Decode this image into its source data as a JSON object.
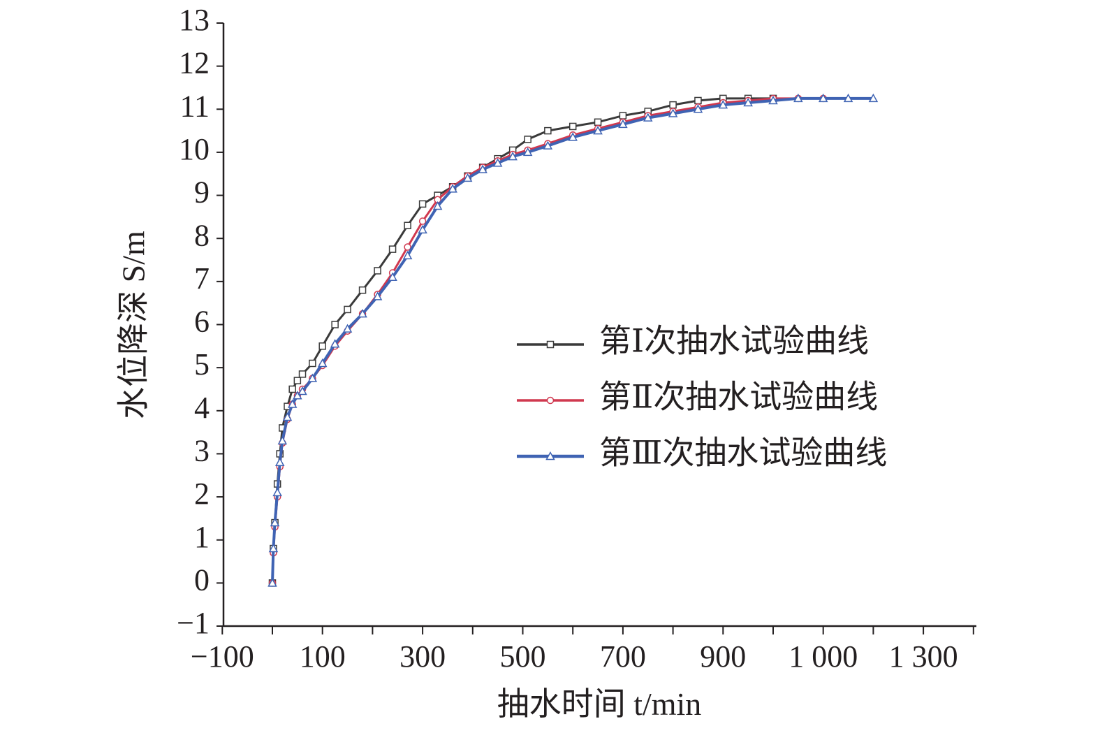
{
  "chart_data": {
    "type": "line",
    "xlabel": "抽水时间 t/min",
    "ylabel": "水位降深 S/m",
    "x_tick_labels": [
      "−100",
      "100",
      "300",
      "500",
      "700",
      "900",
      "1 000",
      "1 300"
    ],
    "y_ticks": [
      -1,
      0,
      1,
      2,
      3,
      4,
      5,
      6,
      7,
      8,
      9,
      10,
      11,
      12,
      13
    ],
    "y_tick_labels": [
      "−1",
      "0",
      "1",
      "2",
      "3",
      "4",
      "5",
      "6",
      "7",
      "8",
      "9",
      "10",
      "11",
      "12",
      "13"
    ],
    "ylim": [
      -1,
      13
    ],
    "grid": false,
    "legend_position": "center-right",
    "series": [
      {
        "name": "第Ⅰ次抽水试验曲线",
        "color": "#3a3a3a",
        "marker": "square",
        "x": [
          0,
          2,
          5,
          10,
          15,
          20,
          30,
          40,
          50,
          60,
          80,
          100,
          125,
          150,
          180,
          210,
          240,
          270,
          300,
          330,
          360,
          390,
          420,
          450,
          480,
          510,
          550,
          600,
          650,
          700,
          750,
          800,
          850,
          900,
          950,
          1000
        ],
        "y": [
          0,
          0.8,
          1.4,
          2.3,
          3.0,
          3.6,
          4.1,
          4.5,
          4.7,
          4.85,
          5.1,
          5.5,
          6.0,
          6.35,
          6.8,
          7.25,
          7.75,
          8.3,
          8.8,
          9.0,
          9.2,
          9.45,
          9.65,
          9.85,
          10.05,
          10.3,
          10.5,
          10.6,
          10.7,
          10.85,
          10.95,
          11.1,
          11.2,
          11.25,
          11.25,
          11.25
        ]
      },
      {
        "name": "第Ⅱ次抽水试验曲线",
        "color": "#d0384f",
        "marker": "circle",
        "x": [
          0,
          2,
          5,
          10,
          15,
          20,
          30,
          40,
          50,
          60,
          80,
          100,
          125,
          150,
          180,
          210,
          240,
          270,
          300,
          330,
          360,
          390,
          420,
          450,
          480,
          510,
          550,
          600,
          650,
          700,
          750,
          800,
          850,
          900,
          950,
          1000,
          1050,
          1100
        ],
        "y": [
          0,
          0.7,
          1.3,
          2.0,
          2.7,
          3.25,
          3.8,
          4.15,
          4.35,
          4.5,
          4.75,
          5.05,
          5.5,
          5.85,
          6.25,
          6.7,
          7.2,
          7.8,
          8.4,
          8.9,
          9.2,
          9.45,
          9.65,
          9.8,
          9.95,
          10.05,
          10.2,
          10.4,
          10.55,
          10.7,
          10.85,
          10.95,
          11.05,
          11.15,
          11.2,
          11.25,
          11.25,
          11.25
        ]
      },
      {
        "name": "第Ⅲ次抽水试验曲线",
        "color": "#3f63b3",
        "marker": "triangle",
        "x": [
          0,
          2,
          5,
          10,
          15,
          20,
          30,
          40,
          50,
          60,
          80,
          100,
          125,
          150,
          180,
          210,
          240,
          270,
          300,
          330,
          360,
          390,
          420,
          450,
          480,
          510,
          550,
          600,
          650,
          700,
          750,
          800,
          850,
          900,
          950,
          1000,
          1050,
          1100,
          1150,
          1200
        ],
        "y": [
          0,
          0.8,
          1.4,
          2.1,
          2.8,
          3.3,
          3.85,
          4.15,
          4.35,
          4.45,
          4.75,
          5.1,
          5.55,
          5.9,
          6.25,
          6.65,
          7.1,
          7.6,
          8.2,
          8.75,
          9.15,
          9.4,
          9.6,
          9.75,
          9.9,
          10.0,
          10.15,
          10.35,
          10.5,
          10.65,
          10.8,
          10.9,
          11.0,
          11.1,
          11.15,
          11.2,
          11.25,
          11.25,
          11.25,
          11.25
        ]
      }
    ]
  }
}
